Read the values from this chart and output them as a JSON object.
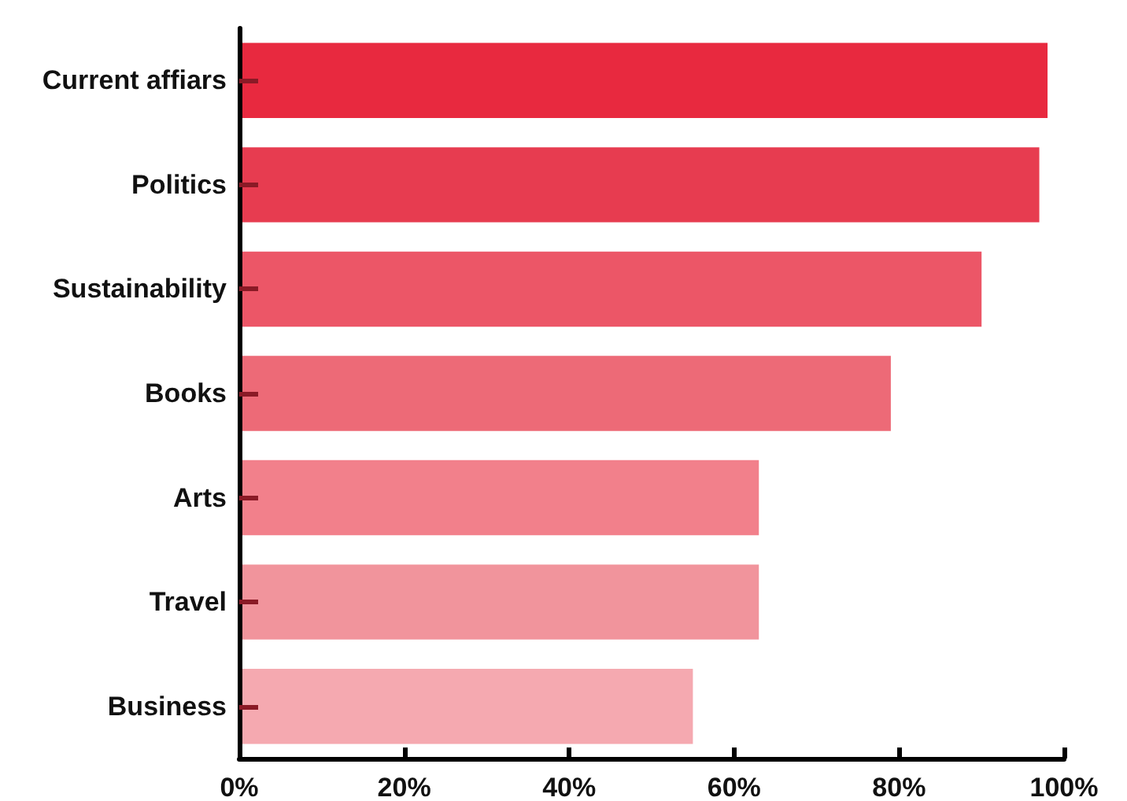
{
  "chart_data": {
    "type": "bar",
    "orientation": "horizontal",
    "categories": [
      "Current affiars",
      "Politics",
      "Sustainability",
      "Books",
      "Arts",
      "Travel",
      "Business"
    ],
    "values": [
      98,
      97,
      90,
      79,
      63,
      63,
      55
    ],
    "colors": [
      "#e8293f",
      "#e73c50",
      "#ec5667",
      "#ed6a77",
      "#f2808b",
      "#f1949c",
      "#f5a9b0"
    ],
    "xlim": [
      0,
      100
    ],
    "xticks": [
      {
        "value": 0,
        "label": "0%"
      },
      {
        "value": 20,
        "label": "20%"
      },
      {
        "value": 40,
        "label": "40%"
      },
      {
        "value": 60,
        "label": "60%"
      },
      {
        "value": 80,
        "label": "80%"
      },
      {
        "value": 100,
        "label": "100%"
      }
    ],
    "grid": false
  }
}
